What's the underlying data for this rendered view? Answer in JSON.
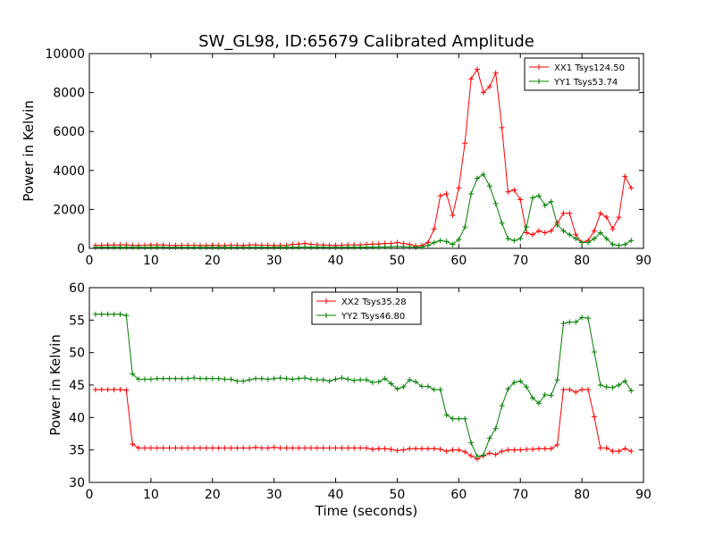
{
  "chart_data": [
    {
      "type": "line",
      "title": "SW_GL98, ID:65679 Calibrated Amplitude",
      "xlabel": "",
      "ylabel": "Power in Kelvin",
      "xlim": [
        0,
        90
      ],
      "ylim": [
        0,
        10000
      ],
      "xticks": [
        0,
        10,
        20,
        30,
        40,
        50,
        60,
        70,
        80,
        90
      ],
      "yticks": [
        0,
        2000,
        4000,
        6000,
        8000,
        10000
      ],
      "legend_position": "upper-right",
      "series": [
        {
          "name": "XX1 Tsys124.50",
          "color": "#ff0000",
          "x": [
            1,
            2,
            3,
            4,
            5,
            6,
            7,
            8,
            9,
            10,
            11,
            12,
            13,
            14,
            15,
            16,
            17,
            18,
            19,
            20,
            21,
            22,
            23,
            24,
            25,
            26,
            27,
            28,
            29,
            30,
            31,
            32,
            33,
            34,
            35,
            36,
            37,
            38,
            39,
            40,
            41,
            42,
            43,
            44,
            45,
            46,
            47,
            48,
            49,
            50,
            51,
            52,
            53,
            54,
            55,
            56,
            57,
            58,
            59,
            60,
            61,
            62,
            63,
            64,
            65,
            66,
            67,
            68,
            69,
            70,
            71,
            72,
            73,
            74,
            75,
            76,
            77,
            78,
            79,
            80,
            81,
            82,
            83,
            84,
            85,
            86,
            87,
            88
          ],
          "y": [
            150,
            160,
            170,
            170,
            170,
            180,
            160,
            150,
            160,
            170,
            180,
            170,
            160,
            150,
            160,
            160,
            160,
            150,
            150,
            160,
            150,
            150,
            160,
            160,
            150,
            170,
            170,
            160,
            160,
            150,
            150,
            150,
            200,
            220,
            250,
            200,
            180,
            170,
            160,
            150,
            160,
            180,
            180,
            170,
            200,
            220,
            220,
            250,
            250,
            300,
            250,
            200,
            120,
            150,
            300,
            1000,
            2700,
            2800,
            1700,
            3100,
            5400,
            8700,
            9200,
            8000,
            8300,
            9000,
            6200,
            2900,
            3000,
            2500,
            800,
            700,
            900,
            800,
            900,
            1300,
            1800,
            1800,
            700,
            300,
            400,
            900,
            1800,
            1600,
            1000,
            1600,
            3700,
            3100
          ]
        },
        {
          "name": "YY1 Tsys53.74",
          "color": "#008000",
          "x": [
            1,
            2,
            3,
            4,
            5,
            6,
            7,
            8,
            9,
            10,
            11,
            12,
            13,
            14,
            15,
            16,
            17,
            18,
            19,
            20,
            21,
            22,
            23,
            24,
            25,
            26,
            27,
            28,
            29,
            30,
            31,
            32,
            33,
            34,
            35,
            36,
            37,
            38,
            39,
            40,
            41,
            42,
            43,
            44,
            45,
            46,
            47,
            48,
            49,
            50,
            51,
            52,
            53,
            54,
            55,
            56,
            57,
            58,
            59,
            60,
            61,
            62,
            63,
            64,
            65,
            66,
            67,
            68,
            69,
            70,
            71,
            72,
            73,
            74,
            75,
            76,
            77,
            78,
            79,
            80,
            81,
            82,
            83,
            84,
            85,
            86,
            87,
            88
          ],
          "y": [
            50,
            55,
            55,
            55,
            55,
            60,
            55,
            50,
            50,
            50,
            55,
            55,
            50,
            50,
            50,
            50,
            50,
            50,
            50,
            50,
            50,
            50,
            50,
            50,
            50,
            50,
            50,
            50,
            50,
            50,
            50,
            50,
            55,
            60,
            70,
            60,
            55,
            55,
            50,
            50,
            50,
            55,
            55,
            55,
            60,
            65,
            70,
            75,
            80,
            90,
            80,
            70,
            50,
            70,
            150,
            300,
            400,
            350,
            200,
            450,
            1100,
            2800,
            3600,
            3800,
            3200,
            2300,
            1300,
            500,
            400,
            500,
            1100,
            2600,
            2700,
            2200,
            2400,
            1200,
            900,
            700,
            500,
            300,
            300,
            500,
            800,
            500,
            200,
            150,
            200,
            400
          ]
        }
      ]
    },
    {
      "type": "line",
      "title": "",
      "xlabel": "Time (seconds)",
      "ylabel": "Power in Kelvin",
      "xlim": [
        0,
        90
      ],
      "ylim": [
        30,
        60
      ],
      "xticks": [
        0,
        10,
        20,
        30,
        40,
        50,
        60,
        70,
        80,
        90
      ],
      "yticks": [
        30,
        35,
        40,
        45,
        50,
        55,
        60
      ],
      "legend_position": "upper-center",
      "series": [
        {
          "name": "XX2 Tsys35.28",
          "color": "#ff0000",
          "x": [
            1,
            2,
            3,
            4,
            5,
            6,
            7,
            8,
            9,
            10,
            11,
            12,
            13,
            14,
            15,
            16,
            17,
            18,
            19,
            20,
            21,
            22,
            23,
            24,
            25,
            26,
            27,
            28,
            29,
            30,
            31,
            32,
            33,
            34,
            35,
            36,
            37,
            38,
            39,
            40,
            41,
            42,
            43,
            44,
            45,
            46,
            47,
            48,
            49,
            50,
            51,
            52,
            53,
            54,
            55,
            56,
            57,
            58,
            59,
            60,
            61,
            62,
            63,
            64,
            65,
            66,
            67,
            68,
            69,
            70,
            71,
            72,
            73,
            74,
            75,
            76,
            77,
            78,
            79,
            80,
            81,
            82,
            83,
            84,
            85,
            86,
            87,
            88
          ],
          "y": [
            44.3,
            44.3,
            44.3,
            44.3,
            44.3,
            44.2,
            35.9,
            35.3,
            35.3,
            35.3,
            35.3,
            35.3,
            35.3,
            35.3,
            35.3,
            35.3,
            35.3,
            35.3,
            35.3,
            35.3,
            35.3,
            35.3,
            35.3,
            35.3,
            35.3,
            35.3,
            35.4,
            35.3,
            35.3,
            35.4,
            35.3,
            35.3,
            35.3,
            35.3,
            35.3,
            35.3,
            35.3,
            35.3,
            35.3,
            35.3,
            35.3,
            35.3,
            35.3,
            35.3,
            35.3,
            35.1,
            35.2,
            35.2,
            35.1,
            34.9,
            35.0,
            35.2,
            35.2,
            35.2,
            35.2,
            35.2,
            35.1,
            34.8,
            35.0,
            35.0,
            34.7,
            34.1,
            33.6,
            34.1,
            34.5,
            34.3,
            34.8,
            35.0,
            35.0,
            35.0,
            35.1,
            35.1,
            35.2,
            35.2,
            35.2,
            35.8,
            44.3,
            44.3,
            43.9,
            44.3,
            44.3,
            40.1,
            35.3,
            35.3,
            34.8,
            34.8,
            35.2,
            34.8
          ]
        },
        {
          "name": "YY2 Tsys46.80",
          "color": "#008000",
          "x": [
            1,
            2,
            3,
            4,
            5,
            6,
            7,
            8,
            9,
            10,
            11,
            12,
            13,
            14,
            15,
            16,
            17,
            18,
            19,
            20,
            21,
            22,
            23,
            24,
            25,
            26,
            27,
            28,
            29,
            30,
            31,
            32,
            33,
            34,
            35,
            36,
            37,
            38,
            39,
            40,
            41,
            42,
            43,
            44,
            45,
            46,
            47,
            48,
            49,
            50,
            51,
            52,
            53,
            54,
            55,
            56,
            57,
            58,
            59,
            60,
            61,
            62,
            63,
            64,
            65,
            66,
            67,
            68,
            69,
            70,
            71,
            72,
            73,
            74,
            75,
            76,
            77,
            78,
            79,
            80,
            81,
            82,
            83,
            84,
            85,
            86,
            87,
            88
          ],
          "y": [
            55.9,
            55.9,
            55.9,
            55.9,
            55.9,
            55.7,
            46.7,
            45.9,
            45.9,
            45.9,
            46.0,
            46.0,
            46.0,
            46.0,
            46.0,
            46.0,
            46.1,
            46.0,
            46.0,
            46.0,
            46.0,
            45.9,
            45.9,
            45.6,
            45.6,
            45.8,
            46.0,
            46.0,
            45.9,
            46.0,
            46.1,
            46.0,
            45.9,
            46.0,
            46.1,
            45.9,
            45.8,
            45.8,
            45.6,
            45.9,
            46.1,
            45.9,
            45.7,
            45.8,
            45.8,
            45.4,
            45.5,
            46.0,
            45.2,
            44.4,
            44.7,
            45.8,
            45.5,
            44.8,
            44.8,
            44.3,
            44.3,
            40.4,
            39.8,
            39.8,
            39.8,
            36.1,
            34.0,
            34.2,
            36.8,
            38.3,
            41.8,
            44.4,
            45.4,
            45.6,
            44.7,
            43.0,
            42.2,
            43.5,
            43.4,
            45.8,
            54.5,
            54.7,
            54.7,
            55.4,
            55.3,
            50.1,
            45.0,
            44.7,
            44.6,
            45.0,
            45.6,
            44.1
          ]
        }
      ]
    }
  ]
}
